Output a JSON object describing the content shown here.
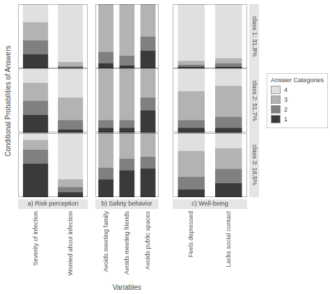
{
  "chart_data": [
    {
      "type": "bar",
      "stacked": true,
      "grid": false,
      "categories": [
        null,
        null
      ],
      "tick_labels": false,
      "ylim": [
        0,
        1
      ],
      "yticks": [],
      "series": [
        {
          "name": "1",
          "color": "#3a3a3a",
          "values": [
            0.22,
            0.02
          ]
        },
        {
          "name": "2",
          "color": "#808080",
          "values": [
            0.22,
            0.02
          ]
        },
        {
          "name": "3",
          "color": "#b3b3b3",
          "values": [
            0.28,
            0.06
          ]
        },
        {
          "name": "4",
          "color": "#e0e0e0",
          "values": [
            0.28,
            0.9
          ]
        }
      ]
    },
    {
      "type": "bar",
      "stacked": true,
      "grid": false,
      "categories": [
        null,
        null,
        null
      ],
      "tick_labels": false,
      "ylim": [
        0,
        1
      ],
      "yticks": [],
      "series": [
        {
          "name": "1",
          "color": "#3a3a3a",
          "values": [
            0.08,
            0.05,
            0.28
          ]
        },
        {
          "name": "2",
          "color": "#808080",
          "values": [
            0.18,
            0.15,
            0.22
          ]
        },
        {
          "name": "3",
          "color": "#b3b3b3",
          "values": [
            0.74,
            0.8,
            0.5
          ]
        },
        {
          "name": "4",
          "color": "#e0e0e0",
          "values": [
            0,
            0,
            0
          ]
        }
      ]
    },
    {
      "type": "bar",
      "stacked": true,
      "grid": false,
      "categories": [
        null,
        null
      ],
      "tick_labels": false,
      "ylim": [
        0,
        1
      ],
      "yticks": [],
      "subtitle": "class 1: 31.8%",
      "series": [
        {
          "name": "1",
          "color": "#3a3a3a",
          "values": [
            0.03,
            0.03
          ]
        },
        {
          "name": "2",
          "color": "#808080",
          "values": [
            0.03,
            0.05
          ]
        },
        {
          "name": "3",
          "color": "#b3b3b3",
          "values": [
            0.06,
            0.08
          ]
        },
        {
          "name": "4",
          "color": "#e0e0e0",
          "values": [
            0.88,
            0.84
          ]
        }
      ]
    },
    {
      "type": "bar",
      "stacked": true,
      "grid": false,
      "categories": [
        null,
        null
      ],
      "tick_labels": false,
      "ylim": [
        0,
        1
      ],
      "yticks": [],
      "ylabel": "Conditional Probabilities of Answers",
      "series": [
        {
          "name": "1",
          "color": "#3a3a3a",
          "values": [
            0.28,
            0.05
          ]
        },
        {
          "name": "2",
          "color": "#808080",
          "values": [
            0.22,
            0.15
          ]
        },
        {
          "name": "3",
          "color": "#b3b3b3",
          "values": [
            0.28,
            0.35
          ]
        },
        {
          "name": "4",
          "color": "#e0e0e0",
          "values": [
            0.22,
            0.45
          ]
        }
      ]
    },
    {
      "type": "bar",
      "stacked": true,
      "grid": false,
      "categories": [
        null,
        null,
        null
      ],
      "tick_labels": false,
      "ylim": [
        0,
        1
      ],
      "yticks": [],
      "series": [
        {
          "name": "1",
          "color": "#3a3a3a",
          "values": [
            0.08,
            0.08,
            0.35
          ]
        },
        {
          "name": "2",
          "color": "#808080",
          "values": [
            0.12,
            0.12,
            0.2
          ]
        },
        {
          "name": "3",
          "color": "#b3b3b3",
          "values": [
            0.8,
            0.8,
            0.45
          ]
        },
        {
          "name": "4",
          "color": "#e0e0e0",
          "values": [
            0,
            0,
            0
          ]
        }
      ]
    },
    {
      "type": "bar",
      "stacked": true,
      "grid": false,
      "categories": [
        null,
        null
      ],
      "tick_labels": false,
      "ylim": [
        0,
        1
      ],
      "yticks": [],
      "subtitle": "class 2: 51.7%",
      "legend": "right",
      "annotations": [
        "Answer Categories"
      ],
      "series": [
        {
          "name": "1",
          "color": "#3a3a3a",
          "values": [
            0.08,
            0.08
          ]
        },
        {
          "name": "2",
          "color": "#808080",
          "values": [
            0.12,
            0.17
          ]
        },
        {
          "name": "3",
          "color": "#b3b3b3",
          "values": [
            0.45,
            0.48
          ]
        },
        {
          "name": "4",
          "color": "#e0e0e0",
          "values": [
            0.35,
            0.27
          ]
        }
      ]
    },
    {
      "type": "bar",
      "stacked": true,
      "grid": false,
      "categories": [
        "Severity of infection",
        "Worried about infection"
      ],
      "tick_labels": "x",
      "ylim": [
        0,
        1
      ],
      "yticks": [],
      "title": "a) Risk perception",
      "series": [
        {
          "name": "1",
          "color": "#3a3a3a",
          "values": [
            0.52,
            0.08
          ]
        },
        {
          "name": "2",
          "color": "#808080",
          "values": [
            0.22,
            0.08
          ]
        },
        {
          "name": "3",
          "color": "#b3b3b3",
          "values": [
            0.15,
            0.12
          ]
        },
        {
          "name": "4",
          "color": "#e0e0e0",
          "values": [
            0.11,
            0.72
          ]
        }
      ]
    },
    {
      "type": "bar",
      "stacked": true,
      "grid": false,
      "categories": [
        "Avoids meeting family",
        "Avoids meeting friends",
        "Avoids public spaces"
      ],
      "tick_labels": "x",
      "ylim": [
        0,
        1
      ],
      "yticks": [],
      "title": "b) Safety behavior",
      "xlabel": "Variables",
      "series": [
        {
          "name": "1",
          "color": "#3a3a3a",
          "values": [
            0.28,
            0.42,
            0.45
          ]
        },
        {
          "name": "2",
          "color": "#808080",
          "values": [
            0.18,
            0.18,
            0.18
          ]
        },
        {
          "name": "3",
          "color": "#b3b3b3",
          "values": [
            0.54,
            0.4,
            0.37
          ]
        },
        {
          "name": "4",
          "color": "#e0e0e0",
          "values": [
            0,
            0,
            0
          ]
        }
      ]
    },
    {
      "type": "bar",
      "stacked": true,
      "grid": false,
      "categories": [
        "Feels depressed",
        "Lacks social contact"
      ],
      "tick_labels": "x",
      "ylim": [
        0,
        1
      ],
      "yticks": [],
      "title": "c) Well-being",
      "subtitle": "class 3: 16.5%",
      "series": [
        {
          "name": "1",
          "color": "#3a3a3a",
          "values": [
            0.12,
            0.22
          ]
        },
        {
          "name": "2",
          "color": "#808080",
          "values": [
            0.2,
            0.22
          ]
        },
        {
          "name": "3",
          "color": "#b3b3b3",
          "values": [
            0.4,
            0.32
          ]
        },
        {
          "name": "4",
          "color": "#e0e0e0",
          "values": [
            0.28,
            0.24
          ]
        }
      ]
    }
  ]
}
